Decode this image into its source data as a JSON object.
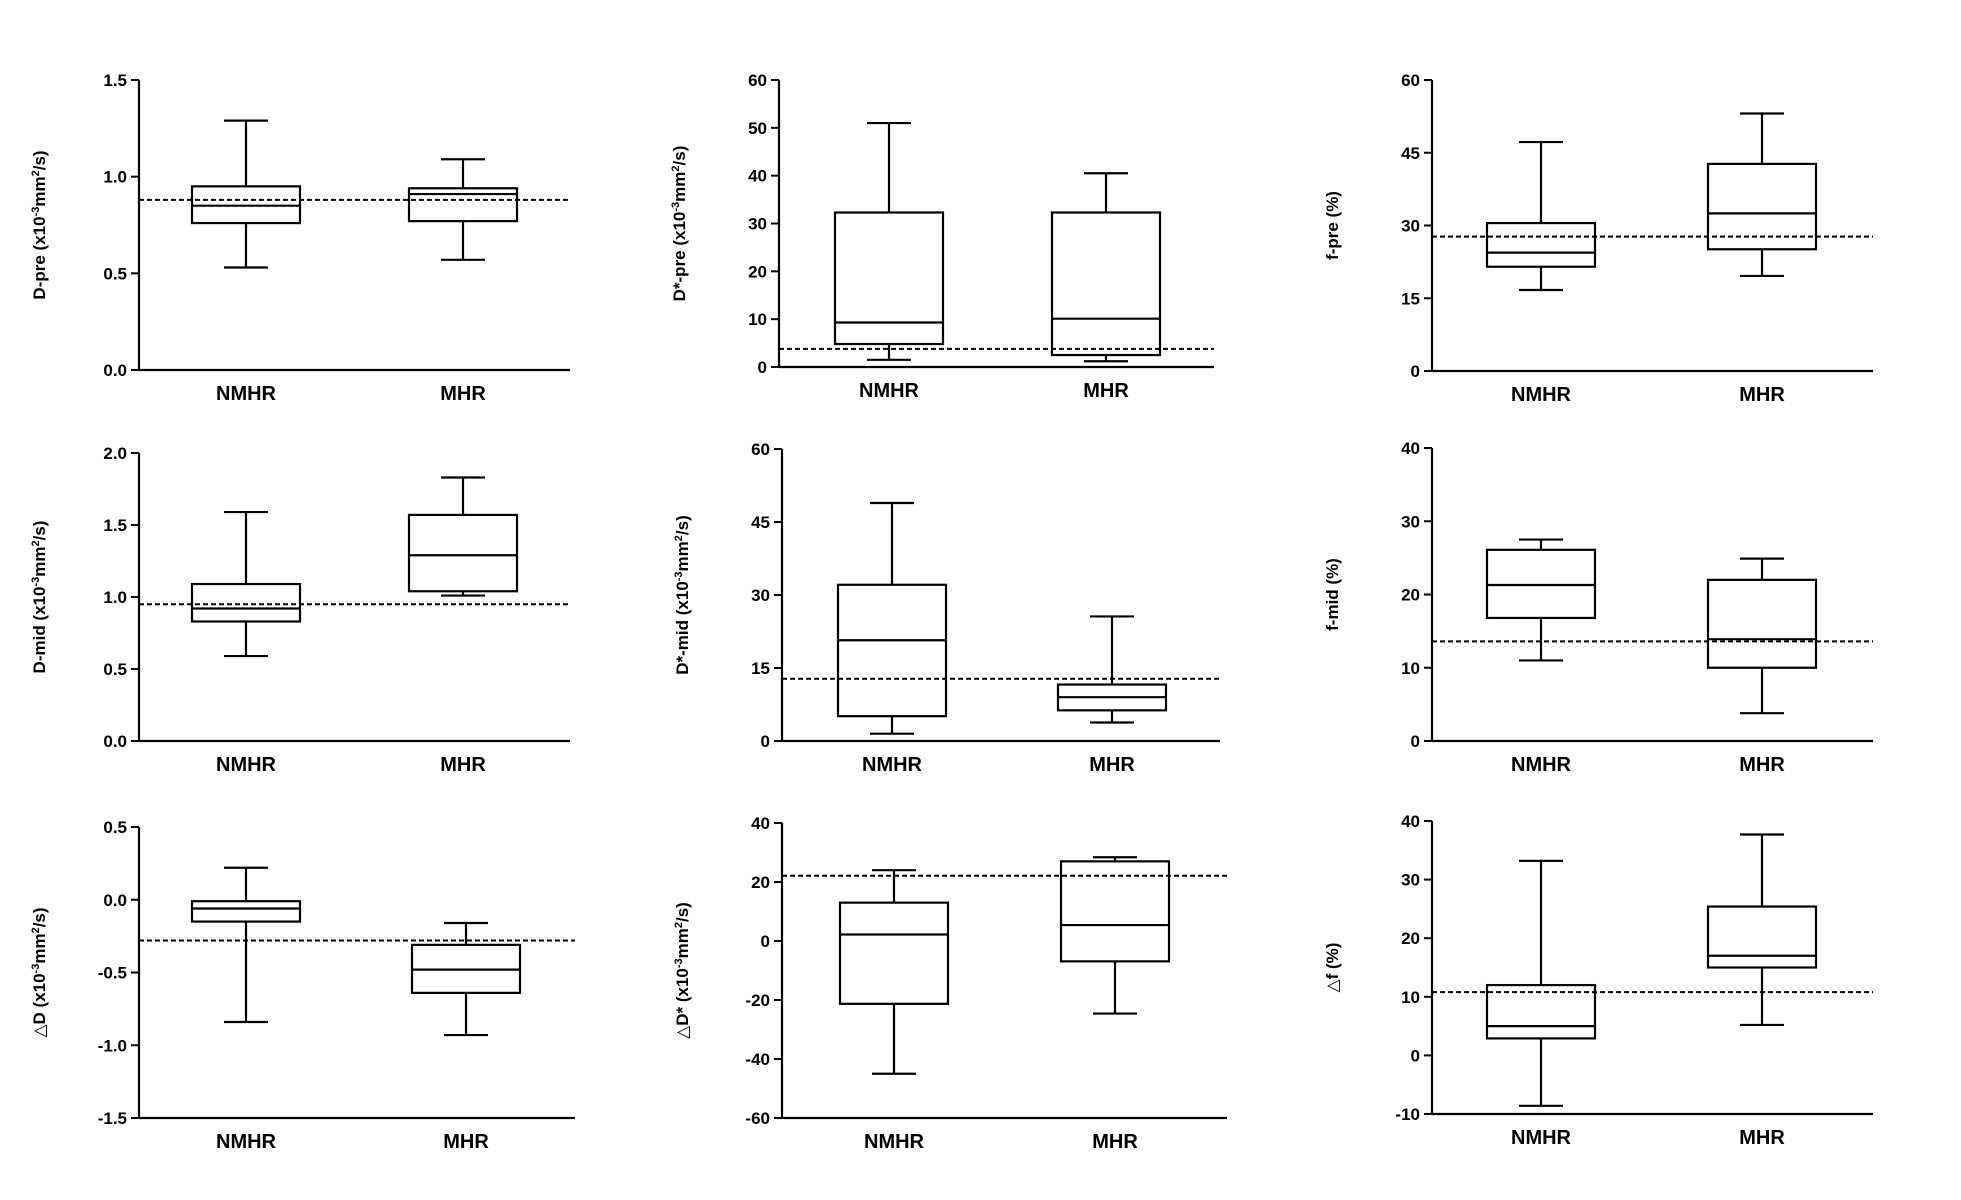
{
  "chart_data": [
    {
      "type": "box",
      "ylabel_parts": [
        {
          "t": "D-pre (x10"
        },
        {
          "t": "-3",
          "sup": true
        },
        {
          "t": "mm"
        },
        {
          "t": "2",
          "sup": true
        },
        {
          "t": "/s)"
        }
      ],
      "ylim": [
        0,
        1.5
      ],
      "yticks": [
        0,
        0.5,
        1.0,
        1.5
      ],
      "ytick_labels": [
        "0.0",
        "0.5",
        "1.0",
        "1.5"
      ],
      "categories": [
        "NMHR",
        "MHR"
      ],
      "boxes": [
        {
          "min": 0.53,
          "q1": 0.76,
          "median": 0.85,
          "q3": 0.95,
          "max": 1.29
        },
        {
          "min": 0.57,
          "q1": 0.77,
          "median": 0.91,
          "q3": 0.94,
          "max": 1.09
        }
      ],
      "reference_line": 0.88
    },
    {
      "type": "box",
      "ylabel_parts": [
        {
          "t": "D*-pre (x10"
        },
        {
          "t": "-3",
          "sup": true
        },
        {
          "t": "mm"
        },
        {
          "t": "2",
          "sup": true
        },
        {
          "t": "/s)"
        }
      ],
      "ylim": [
        0,
        60
      ],
      "yticks": [
        0,
        10,
        20,
        30,
        40,
        50,
        60
      ],
      "ytick_labels": [
        "0",
        "10",
        "20",
        "30",
        "40",
        "50",
        "60"
      ],
      "categories": [
        "NMHR",
        "MHR"
      ],
      "boxes": [
        {
          "min": 1.5,
          "q1": 4.8,
          "median": 9.3,
          "q3": 32.3,
          "max": 51.0
        },
        {
          "min": 1.2,
          "q1": 2.5,
          "median": 10.1,
          "q3": 32.3,
          "max": 40.5
        }
      ],
      "reference_line": 3.8
    },
    {
      "type": "box",
      "ylabel_parts": [
        {
          "t": "f-pre (%)"
        }
      ],
      "ylim": [
        0,
        60
      ],
      "yticks": [
        0,
        15,
        30,
        45,
        60
      ],
      "ytick_labels": [
        "0",
        "15",
        "30",
        "45",
        "60"
      ],
      "categories": [
        "NMHR",
        "MHR"
      ],
      "boxes": [
        {
          "min": 16.7,
          "q1": 21.5,
          "median": 24.4,
          "q3": 30.5,
          "max": 47.2
        },
        {
          "min": 19.6,
          "q1": 25.1,
          "median": 32.5,
          "q3": 42.7,
          "max": 53.1
        }
      ],
      "reference_line": 27.7
    },
    {
      "type": "box",
      "ylabel_parts": [
        {
          "t": "D-mid (x10"
        },
        {
          "t": "-3",
          "sup": true
        },
        {
          "t": "mm"
        },
        {
          "t": "2",
          "sup": true
        },
        {
          "t": "/s)"
        }
      ],
      "ylim": [
        0,
        2.0
      ],
      "yticks": [
        0,
        0.5,
        1.0,
        1.5,
        2.0
      ],
      "ytick_labels": [
        "0.0",
        "0.5",
        "1.0",
        "1.5",
        "2.0"
      ],
      "categories": [
        "NMHR",
        "MHR"
      ],
      "boxes": [
        {
          "min": 0.59,
          "q1": 0.83,
          "median": 0.92,
          "q3": 1.09,
          "max": 1.59
        },
        {
          "min": 1.01,
          "q1": 1.04,
          "median": 1.29,
          "q3": 1.57,
          "max": 1.83
        }
      ],
      "reference_line": 0.95
    },
    {
      "type": "box",
      "ylabel_parts": [
        {
          "t": "D*-mid (x10"
        },
        {
          "t": "-3",
          "sup": true
        },
        {
          "t": "mm"
        },
        {
          "t": "2",
          "sup": true
        },
        {
          "t": "/s)"
        }
      ],
      "ylim": [
        0,
        60
      ],
      "yticks": [
        0,
        15,
        30,
        45,
        60
      ],
      "ytick_labels": [
        "0",
        "15",
        "30",
        "45",
        "60"
      ],
      "categories": [
        "NMHR",
        "MHR"
      ],
      "boxes": [
        {
          "min": 1.5,
          "q1": 5.1,
          "median": 20.7,
          "q3": 32.1,
          "max": 48.9
        },
        {
          "min": 3.8,
          "q1": 6.3,
          "median": 9.0,
          "q3": 11.6,
          "max": 25.6
        }
      ],
      "reference_line": 12.8
    },
    {
      "type": "box",
      "ylabel_parts": [
        {
          "t": "f-mid (%)"
        }
      ],
      "ylim": [
        0,
        40
      ],
      "yticks": [
        0,
        10,
        20,
        30,
        40
      ],
      "ytick_labels": [
        "0",
        "10",
        "20",
        "30",
        "40"
      ],
      "categories": [
        "NMHR",
        "MHR"
      ],
      "boxes": [
        {
          "min": 11.0,
          "q1": 16.8,
          "median": 21.3,
          "q3": 26.1,
          "max": 27.5
        },
        {
          "min": 3.8,
          "q1": 10.0,
          "median": 13.9,
          "q3": 22.0,
          "max": 24.9
        }
      ],
      "reference_line": 13.6
    },
    {
      "type": "box",
      "ylabel_parts": [
        {
          "t": "△D (x10"
        },
        {
          "t": "-3",
          "sup": true
        },
        {
          "t": "mm"
        },
        {
          "t": "2",
          "sup": true
        },
        {
          "t": "/s)"
        }
      ],
      "ylim": [
        -1.5,
        0.5
      ],
      "yticks": [
        -1.5,
        -1.0,
        -0.5,
        0.0,
        0.5
      ],
      "ytick_labels": [
        "-1.5",
        "-1.0",
        "-0.5",
        "0.0",
        "0.5"
      ],
      "categories": [
        "NMHR",
        "MHR"
      ],
      "boxes": [
        {
          "min": -0.84,
          "q1": -0.15,
          "median": -0.06,
          "q3": -0.01,
          "max": 0.22
        },
        {
          "min": -0.93,
          "q1": -0.64,
          "median": -0.48,
          "q3": -0.31,
          "max": -0.16
        }
      ],
      "reference_line": -0.28
    },
    {
      "type": "box",
      "ylabel_parts": [
        {
          "t": "△D* (x10"
        },
        {
          "t": "-3",
          "sup": true
        },
        {
          "t": "mm"
        },
        {
          "t": "2",
          "sup": true
        },
        {
          "t": "/s)"
        }
      ],
      "ylim": [
        -60,
        40
      ],
      "yticks": [
        -60,
        -40,
        -20,
        0,
        20,
        40
      ],
      "ytick_labels": [
        "-60",
        "-40",
        "-20",
        "0",
        "20",
        "40"
      ],
      "categories": [
        "NMHR",
        "MHR"
      ],
      "boxes": [
        {
          "min": -45.0,
          "q1": -21.3,
          "median": 2.2,
          "q3": 13.0,
          "max": 24.0
        },
        {
          "min": -24.6,
          "q1": -6.9,
          "median": 5.4,
          "q3": 27.0,
          "max": 28.4
        }
      ],
      "reference_line": 22.1
    },
    {
      "type": "box",
      "ylabel_parts": [
        {
          "t": "△f (%)"
        }
      ],
      "ylim": [
        -10,
        40
      ],
      "yticks": [
        -10,
        0,
        10,
        20,
        30,
        40
      ],
      "ytick_labels": [
        "-10",
        "0",
        "10",
        "20",
        "30",
        "40"
      ],
      "categories": [
        "NMHR",
        "MHR"
      ],
      "boxes": [
        {
          "min": -8.6,
          "q1": 2.9,
          "median": 5.0,
          "q3": 12.0,
          "max": 33.2
        },
        {
          "min": 5.2,
          "q1": 15.0,
          "median": 17.0,
          "q3": 25.4,
          "max": 37.7
        }
      ],
      "reference_line": 10.8
    }
  ]
}
